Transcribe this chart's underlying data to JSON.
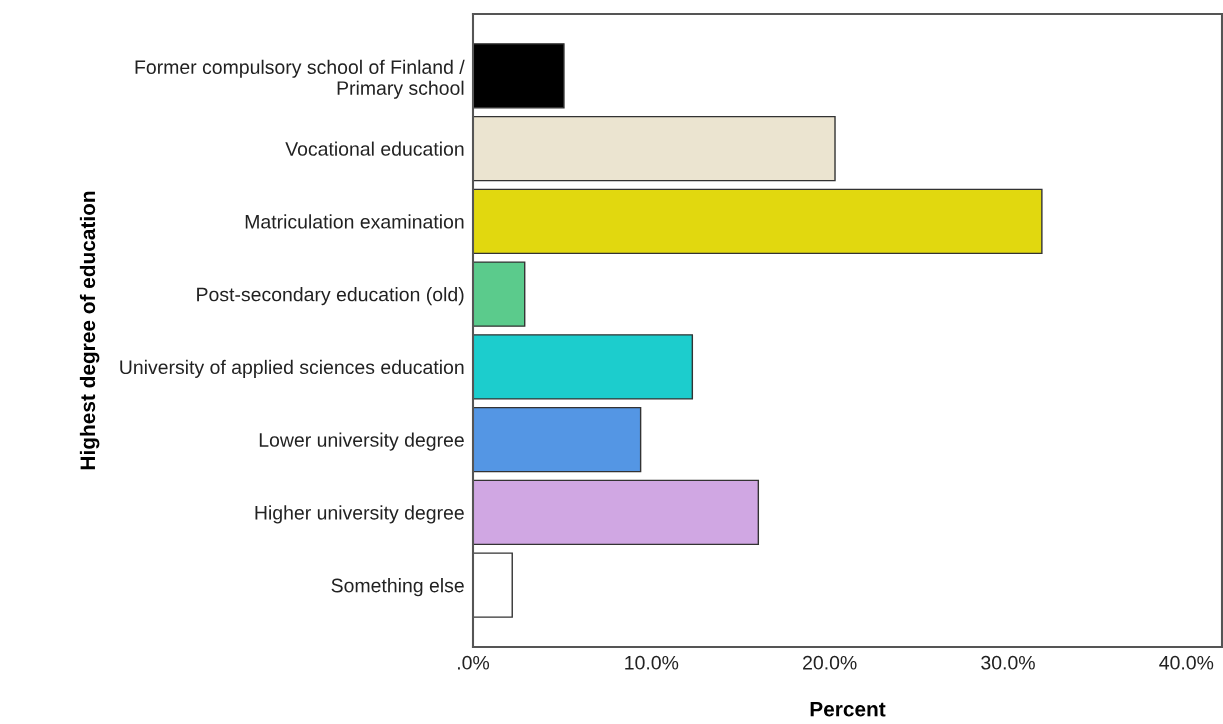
{
  "chart_data": {
    "type": "bar",
    "orientation": "horizontal",
    "xlabel": "Percent",
    "ylabel": "Highest degree of education",
    "categories": [
      "Former compulsory school of Finland /\nPrimary school",
      "Vocational education",
      "Matriculation examination",
      "Post-secondary education (old)",
      "University of applied sciences education",
      "Lower university degree",
      "Higher university degree",
      "Something else"
    ],
    "values": [
      5.1,
      20.3,
      31.9,
      2.9,
      12.3,
      9.4,
      16.0,
      2.2
    ],
    "colors": [
      "#000000",
      "#ebe4d0",
      "#e1d80f",
      "#5bcb8c",
      "#1ccdcd",
      "#5496e4",
      "#d0a7e3",
      "#ffffff"
    ],
    "xlim": [
      0,
      42
    ],
    "xticks": [
      {
        "value": 0,
        "label": ".0%"
      },
      {
        "value": 10,
        "label": "10.0%"
      },
      {
        "value": 20,
        "label": "20.0%"
      },
      {
        "value": 30,
        "label": "30.0%"
      },
      {
        "value": 40,
        "label": "40.0%"
      }
    ],
    "grid": false,
    "legend": false
  }
}
